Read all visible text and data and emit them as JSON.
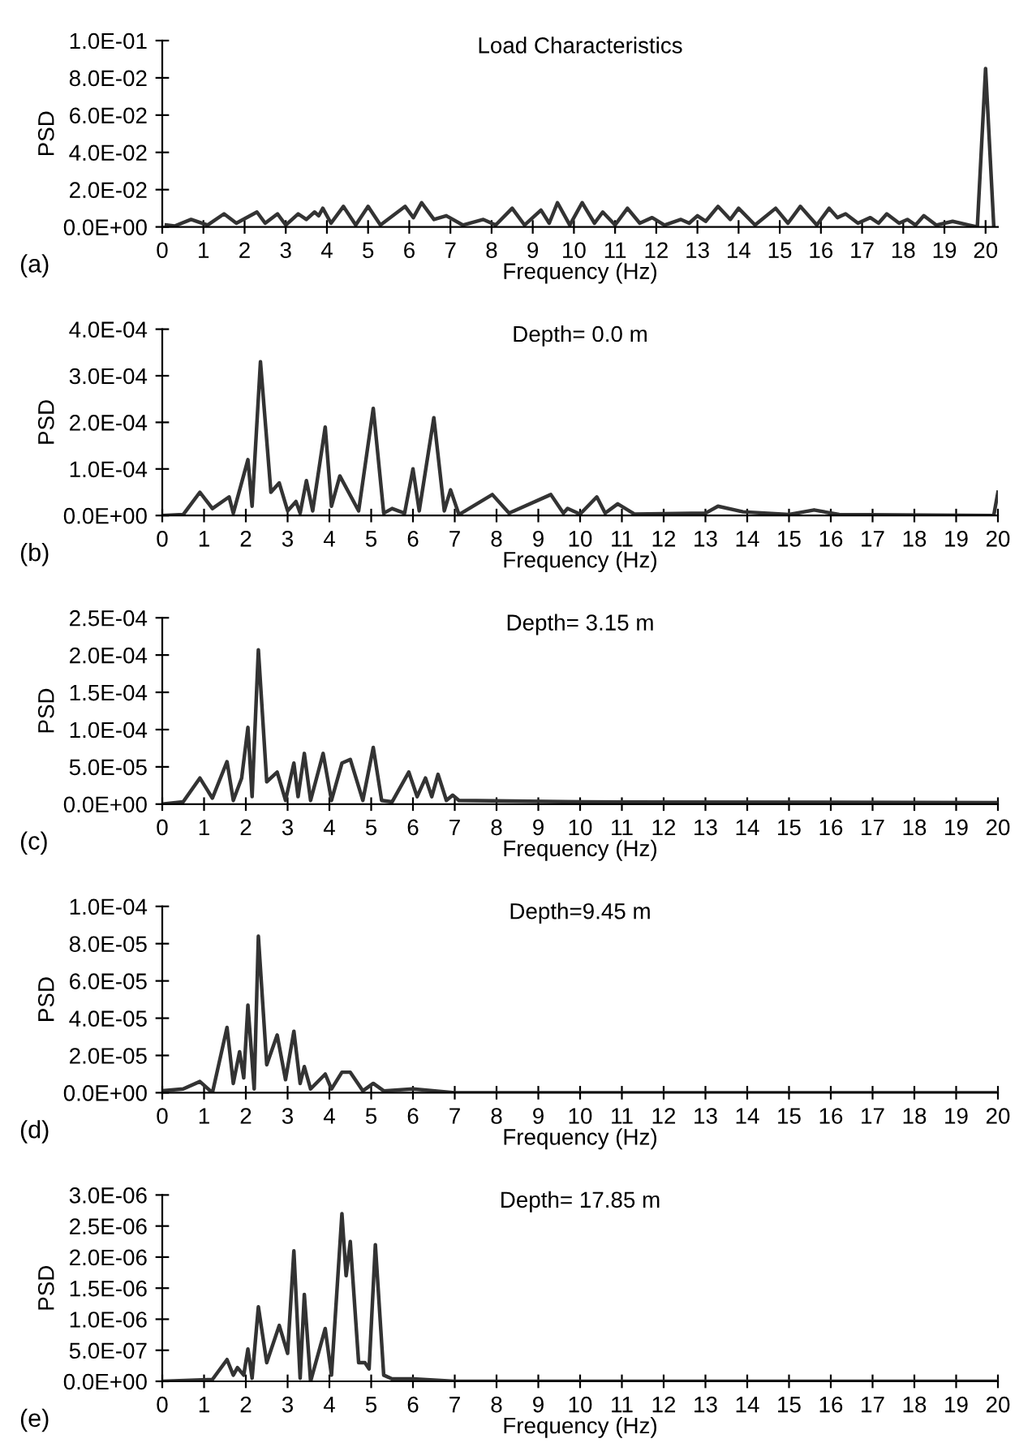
{
  "chart_data": [
    {
      "type": "line",
      "title": "Load Characteristics",
      "xlabel": "Frequency (Hz)",
      "ylabel": "PSD",
      "annotations": [
        "(a)"
      ],
      "color": "#333333",
      "line_style": "solid",
      "legend": false,
      "grid": false,
      "x": [
        0.1,
        0.3,
        0.7,
        1.1,
        1.5,
        1.8,
        2.3,
        2.5,
        2.8,
        3.0,
        3.3,
        3.5,
        3.7,
        3.8,
        3.9,
        4.1,
        4.4,
        4.7,
        5.0,
        5.3,
        5.9,
        6.1,
        6.3,
        6.6,
        6.9,
        7.3,
        7.8,
        8.1,
        8.5,
        8.8,
        9.2,
        9.4,
        9.6,
        9.9,
        10.2,
        10.5,
        10.7,
        11.0,
        11.3,
        11.6,
        11.9,
        12.2,
        12.6,
        12.8,
        13.0,
        13.2,
        13.5,
        13.8,
        14.0,
        14.4,
        14.9,
        15.2,
        15.5,
        15.9,
        16.2,
        16.4,
        16.6,
        16.9,
        17.2,
        17.4,
        17.6,
        17.9,
        18.1,
        18.3,
        18.5,
        18.8,
        19.2,
        19.6,
        19.8,
        20.0,
        20.2
      ],
      "values": [
        0.001,
        0.0005,
        0.004,
        0.001,
        0.007,
        0.002,
        0.008,
        0.002,
        0.007,
        0.001,
        0.007,
        0.004,
        0.008,
        0.006,
        0.01,
        0.002,
        0.011,
        0.001,
        0.011,
        0.001,
        0.011,
        0.005,
        0.013,
        0.004,
        0.006,
        0.001,
        0.004,
        0.001,
        0.01,
        0.001,
        0.009,
        0.002,
        0.013,
        0.001,
        0.013,
        0.002,
        0.008,
        0.001,
        0.01,
        0.002,
        0.005,
        0.001,
        0.004,
        0.002,
        0.006,
        0.003,
        0.011,
        0.004,
        0.01,
        0.001,
        0.01,
        0.002,
        0.011,
        0.001,
        0.01,
        0.005,
        0.007,
        0.002,
        0.005,
        0.002,
        0.007,
        0.002,
        0.004,
        0.001,
        0.006,
        0.001,
        0.003,
        0.001,
        0.0,
        0.085,
        0.0
      ],
      "xlim": [
        0,
        20.3
      ],
      "xticks": [
        0,
        1,
        2,
        3,
        4,
        5,
        6,
        7,
        8,
        9,
        10,
        11,
        12,
        13,
        14,
        15,
        16,
        17,
        18,
        19,
        20
      ],
      "ylim": [
        0,
        0.1
      ],
      "yticks": [
        {
          "value": 0,
          "label": "0.0E+00"
        },
        {
          "value": 0.02,
          "label": "2.0E-02"
        },
        {
          "value": 0.04,
          "label": "4.0E-02"
        },
        {
          "value": 0.06,
          "label": "6.0E-02"
        },
        {
          "value": 0.08,
          "label": "8.0E-02"
        },
        {
          "value": 0.1,
          "label": "1.0E-01"
        }
      ]
    },
    {
      "type": "line",
      "title": "Depth= 0.0 m",
      "xlabel": "Frequency (Hz)",
      "ylabel": "PSD",
      "annotations": [
        "(b)"
      ],
      "color": "#333333",
      "line_style": "solid",
      "legend": false,
      "grid": false,
      "x": [
        0,
        0.5,
        0.9,
        1.2,
        1.6,
        1.7,
        2.05,
        2.15,
        2.35,
        2.6,
        2.8,
        3.0,
        3.2,
        3.3,
        3.45,
        3.6,
        3.9,
        4.05,
        4.25,
        4.7,
        5.05,
        5.3,
        5.5,
        5.8,
        6.0,
        6.15,
        6.5,
        6.75,
        6.9,
        7.1,
        7.9,
        8.3,
        9.3,
        9.6,
        9.7,
        10.0,
        10.4,
        10.6,
        10.9,
        11.3,
        13.0,
        13.3,
        13.9,
        15.0,
        15.6,
        16.2,
        19.9,
        20.0
      ],
      "values": [
        0,
        2e-06,
        5e-05,
        1.5e-05,
        4e-05,
        5e-06,
        0.00012,
        2e-05,
        0.00033,
        5e-05,
        7e-05,
        1e-05,
        3e-05,
        5e-06,
        7.5e-05,
        1e-05,
        0.00019,
        2e-05,
        8.5e-05,
        1e-05,
        0.00023,
        5e-06,
        1.5e-05,
        5e-06,
        0.0001,
        1e-05,
        0.00021,
        1e-05,
        5.5e-05,
        2e-06,
        4.5e-05,
        5e-06,
        4.5e-05,
        5e-06,
        1.5e-05,
        3e-06,
        4e-05,
        5e-06,
        2.5e-05,
        3e-06,
        5e-06,
        2e-05,
        8e-06,
        2e-06,
        1.2e-05,
        2e-06,
        0,
        5e-05
      ],
      "xlim": [
        0,
        20
      ],
      "xticks": [
        0,
        1,
        2,
        3,
        4,
        5,
        6,
        7,
        8,
        9,
        10,
        11,
        12,
        13,
        14,
        15,
        16,
        17,
        18,
        19,
        20
      ],
      "ylim": [
        0,
        0.0004
      ],
      "yticks": [
        {
          "value": 0,
          "label": "0.0E+00"
        },
        {
          "value": 0.0001,
          "label": "1.0E-04"
        },
        {
          "value": 0.0002,
          "label": "2.0E-04"
        },
        {
          "value": 0.0003,
          "label": "3.0E-04"
        },
        {
          "value": 0.0004,
          "label": "4.0E-04"
        }
      ]
    },
    {
      "type": "line",
      "title": "Depth= 3.15 m",
      "xlabel": "Frequency (Hz)",
      "ylabel": "PSD",
      "annotations": [
        "(c)"
      ],
      "color": "#333333",
      "line_style": "solid",
      "legend": false,
      "grid": false,
      "x": [
        0,
        0.5,
        0.9,
        1.2,
        1.55,
        1.7,
        1.9,
        2.05,
        2.15,
        2.3,
        2.5,
        2.75,
        2.95,
        3.15,
        3.25,
        3.4,
        3.55,
        3.85,
        4.05,
        4.3,
        4.5,
        4.8,
        5.05,
        5.25,
        5.5,
        5.9,
        6.1,
        6.3,
        6.45,
        6.6,
        6.8,
        6.95,
        7.1,
        10,
        20
      ],
      "values": [
        0,
        3e-06,
        3.5e-05,
        8e-06,
        5.7e-05,
        5e-06,
        3.5e-05,
        0.000103,
        1e-05,
        0.000207,
        3e-05,
        4.3e-05,
        5e-06,
        5.5e-05,
        1e-05,
        6.8e-05,
        5e-06,
        6.8e-05,
        5e-06,
        5.5e-05,
        6e-05,
        5e-06,
        7.6e-05,
        5e-06,
        3e-06,
        4.3e-05,
        1e-05,
        3.5e-05,
        1e-05,
        4e-05,
        5e-06,
        1.2e-05,
        5e-06,
        3e-06,
        2e-06
      ],
      "xlim": [
        0,
        20
      ],
      "xticks": [
        0,
        1,
        2,
        3,
        4,
        5,
        6,
        7,
        8,
        9,
        10,
        11,
        12,
        13,
        14,
        15,
        16,
        17,
        18,
        19,
        20
      ],
      "ylim": [
        0,
        0.00025
      ],
      "yticks": [
        {
          "value": 0,
          "label": "0.0E+00"
        },
        {
          "value": 5e-05,
          "label": "5.0E-05"
        },
        {
          "value": 0.0001,
          "label": "1.0E-04"
        },
        {
          "value": 0.00015,
          "label": "1.5E-04"
        },
        {
          "value": 0.0002,
          "label": "2.0E-04"
        },
        {
          "value": 0.00025,
          "label": "2.5E-04"
        }
      ]
    },
    {
      "type": "line",
      "title": "Depth=9.45 m",
      "xlabel": "Frequency (Hz)",
      "ylabel": "PSD",
      "annotations": [
        "(d)"
      ],
      "color": "#333333",
      "line_style": "solid",
      "legend": false,
      "grid": false,
      "x": [
        0,
        0.5,
        0.9,
        1.2,
        1.55,
        1.7,
        1.85,
        1.95,
        2.05,
        2.2,
        2.3,
        2.5,
        2.75,
        2.95,
        3.15,
        3.3,
        3.4,
        3.55,
        3.9,
        4.05,
        4.3,
        4.5,
        4.8,
        5.05,
        5.3,
        6,
        7,
        20
      ],
      "values": [
        1e-06,
        2e-06,
        6e-06,
        0,
        3.5e-05,
        5e-06,
        2.2e-05,
        8e-06,
        4.7e-05,
        2e-06,
        8.4e-05,
        1.5e-05,
        3.1e-05,
        7e-06,
        3.3e-05,
        5e-06,
        1.4e-05,
        2e-06,
        1e-05,
        2e-06,
        1.1e-05,
        1.1e-05,
        1e-06,
        5e-06,
        1e-06,
        2e-06,
        0,
        0
      ],
      "xlim": [
        0,
        20
      ],
      "xticks": [
        0,
        1,
        2,
        3,
        4,
        5,
        6,
        7,
        8,
        9,
        10,
        11,
        12,
        13,
        14,
        15,
        16,
        17,
        18,
        19,
        20
      ],
      "ylim": [
        0,
        0.0001
      ],
      "yticks": [
        {
          "value": 0,
          "label": "0.0E+00"
        },
        {
          "value": 2e-05,
          "label": "2.0E-05"
        },
        {
          "value": 4e-05,
          "label": "4.0E-05"
        },
        {
          "value": 6e-05,
          "label": "6.0E-05"
        },
        {
          "value": 8e-05,
          "label": "8.0E-05"
        },
        {
          "value": 0.0001,
          "label": "1.0E-04"
        }
      ]
    },
    {
      "type": "line",
      "title": "Depth= 17.85 m",
      "xlabel": "Frequency (Hz)",
      "ylabel": "PSD",
      "annotations": [
        "(e)"
      ],
      "color": "#333333",
      "line_style": "solid",
      "legend": false,
      "grid": false,
      "x": [
        0,
        1.2,
        1.55,
        1.7,
        1.8,
        1.95,
        2.05,
        2.15,
        2.3,
        2.5,
        2.8,
        3.0,
        3.15,
        3.3,
        3.4,
        3.55,
        3.9,
        4.05,
        4.3,
        4.4,
        4.5,
        4.7,
        4.85,
        4.95,
        5.1,
        5.3,
        5.5,
        6,
        7,
        20
      ],
      "values": [
        0,
        3e-08,
        3.5e-07,
        1e-07,
        2.2e-07,
        1e-07,
        5.2e-07,
        5e-08,
        1.2e-06,
        3e-07,
        9e-07,
        4.5e-07,
        2.1e-06,
        5e-08,
        1.4e-06,
        0,
        8.5e-07,
        1e-07,
        2.7e-06,
        1.7e-06,
        2.25e-06,
        3e-07,
        3e-07,
        2e-07,
        2.2e-06,
        1e-07,
        4e-08,
        4e-08,
        0,
        0
      ],
      "xlim": [
        0,
        20
      ],
      "xticks": [
        0,
        1,
        2,
        3,
        4,
        5,
        6,
        7,
        8,
        9,
        10,
        11,
        12,
        13,
        14,
        15,
        16,
        17,
        18,
        19,
        20
      ],
      "ylim": [
        0,
        3e-06
      ],
      "yticks": [
        {
          "value": 0,
          "label": "0.0E+00"
        },
        {
          "value": 5e-07,
          "label": "5.0E-07"
        },
        {
          "value": 1e-06,
          "label": "1.0E-06"
        },
        {
          "value": 1.5e-06,
          "label": "1.5E-06"
        },
        {
          "value": 2e-06,
          "label": "2.0E-06"
        },
        {
          "value": 2.5e-06,
          "label": "2.5E-06"
        },
        {
          "value": 3e-06,
          "label": "3.0E-06"
        }
      ]
    }
  ]
}
